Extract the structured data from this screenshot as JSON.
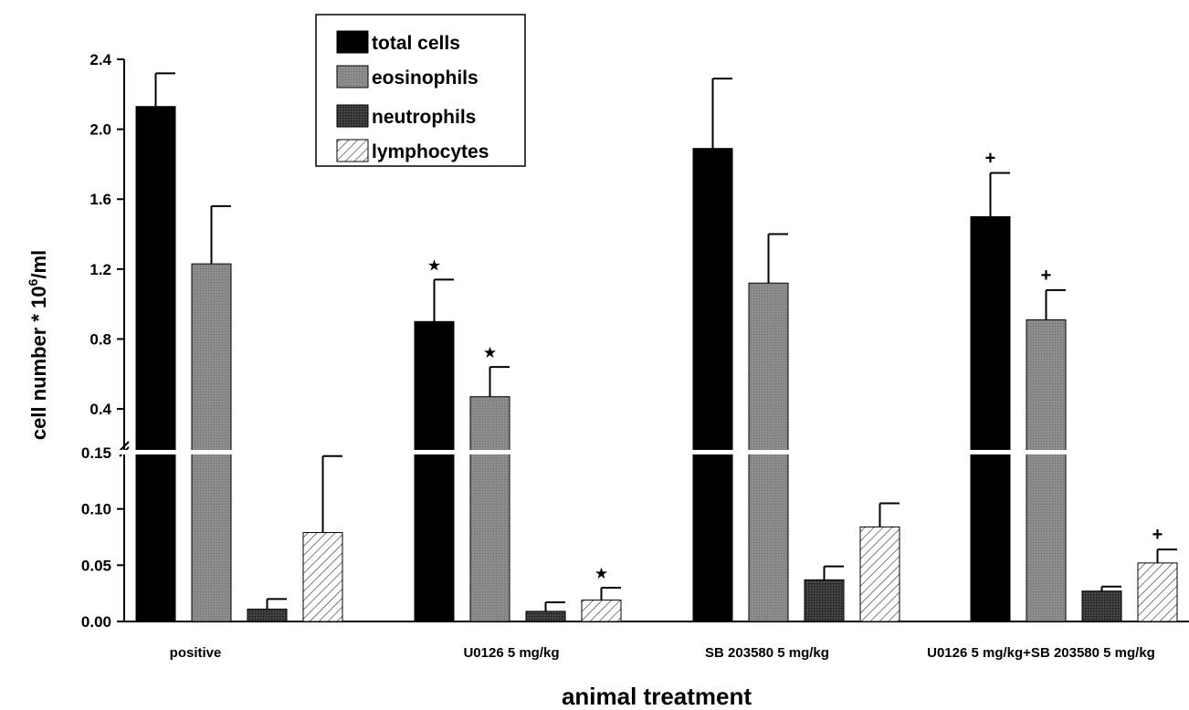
{
  "chart_data": {
    "type": "bar",
    "xlabel": "animal treatment",
    "ylabel": "cell number * 10",
    "ylabel_sup": "6",
    "ylabel_unit": "/ml",
    "categories": [
      "positive",
      "U0126 5 mg/kg",
      "SB 203580 5 mg/kg",
      "U0126 5 mg/kg+SB 203580 5 mg/kg"
    ],
    "axis_break": true,
    "ylim_lower": [
      0,
      0.15
    ],
    "ylim_upper": [
      0.15,
      2.4
    ],
    "yticks_lower": [
      "0.00",
      "0.05",
      "0.10",
      "0.15"
    ],
    "yticks_upper": [
      "0.4",
      "0.8",
      "1.2",
      "1.6",
      "2.0",
      "2.4"
    ],
    "yticks_lower_values": [
      0,
      0.05,
      0.1,
      0.15
    ],
    "yticks_upper_values": [
      0.4,
      0.8,
      1.2,
      1.6,
      2.0,
      2.4
    ],
    "legend_position": "top-center",
    "series": [
      {
        "name": "total cells",
        "fill": "black",
        "values": [
          2.13,
          0.9,
          1.89,
          1.5
        ],
        "errors": [
          0.19,
          0.24,
          0.4,
          0.25
        ],
        "markers": [
          "",
          "★",
          "",
          "+"
        ]
      },
      {
        "name": "eosinophils",
        "fill": "gray",
        "values": [
          1.23,
          0.47,
          1.12,
          0.91
        ],
        "errors": [
          0.33,
          0.17,
          0.28,
          0.17
        ],
        "markers": [
          "",
          "★",
          "",
          "+"
        ]
      },
      {
        "name": "neutrophils",
        "fill": "dark",
        "values": [
          0.011,
          0.009,
          0.037,
          0.027
        ],
        "errors": [
          0.009,
          0.008,
          0.012,
          0.004
        ],
        "markers": [
          "",
          "",
          "",
          ""
        ]
      },
      {
        "name": "lymphocytes",
        "fill": "hatch",
        "values": [
          0.079,
          0.019,
          0.084,
          0.052
        ],
        "errors": [
          0.068,
          0.011,
          0.021,
          0.012
        ],
        "markers": [
          "",
          "★",
          "",
          "+"
        ]
      }
    ]
  }
}
